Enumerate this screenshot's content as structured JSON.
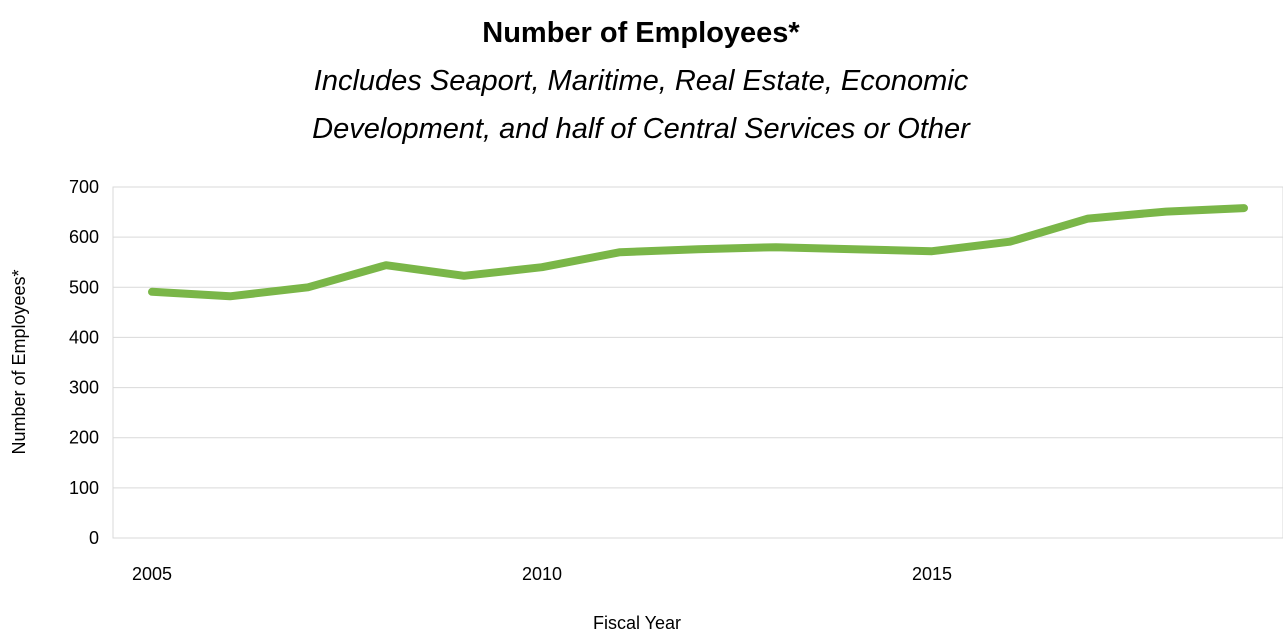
{
  "chart_data": {
    "type": "line",
    "title": "Number of Employees*",
    "subtitle_lines": [
      "Includes Seaport, Maritime, Real Estate, Economic",
      "Development, and half of Central Services or Other"
    ],
    "xlabel": "Fiscal Year",
    "ylabel": "Number of Employees*",
    "xlim": [
      2004.5,
      2019.5
    ],
    "ylim": [
      0,
      700
    ],
    "x_ticks": [
      2005,
      2010,
      2015
    ],
    "y_ticks": [
      0,
      100,
      200,
      300,
      400,
      500,
      600,
      700
    ],
    "grid": true,
    "series": [
      {
        "color": "#7ab648",
        "x": [
          2005,
          2006,
          2007,
          2008,
          2009,
          2010,
          2011,
          2012,
          2013,
          2014,
          2015,
          2016,
          2017,
          2018,
          2019
        ],
        "values": [
          491,
          482,
          500,
          544,
          523,
          540,
          570,
          576,
          580,
          576,
          572,
          591,
          637,
          651,
          658
        ]
      }
    ]
  }
}
